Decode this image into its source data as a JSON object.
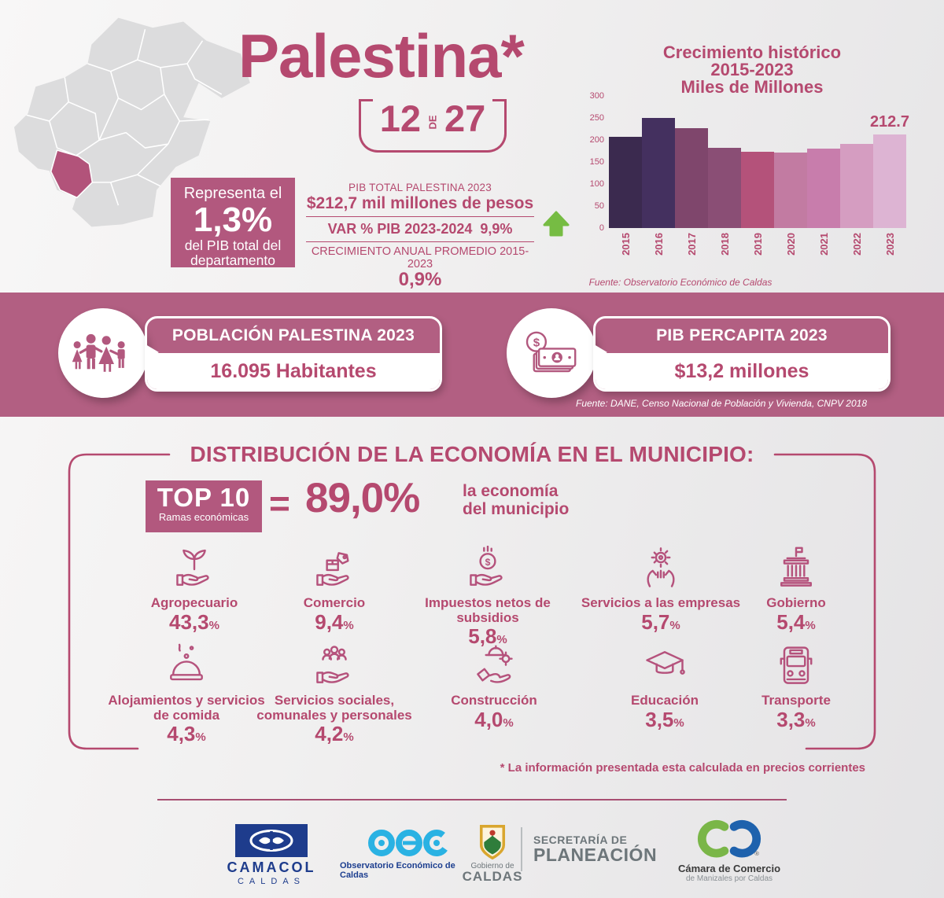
{
  "header": {
    "title": "Palestina*",
    "rank": {
      "value1": "12",
      "connector": "DE",
      "value2": "27"
    },
    "share_box": {
      "intro": "Representa el",
      "value": "1,3%",
      "caption": "del PIB total del departamento"
    },
    "pib": {
      "label1": "PIB TOTAL PALESTINA 2023",
      "value1": "$212,7 mil millones de pesos",
      "var_label": "VAR % PIB 2023-2024",
      "var_value": "9,9%",
      "growth_label": "CRECIMIENTO ANUAL PROMEDIO 2015-2023",
      "growth_value": "0,9%"
    },
    "source": "Fuente: Observatorio Económico de Caldas"
  },
  "chart_data": {
    "type": "bar",
    "title_lines": [
      "Crecimiento histórico",
      "2015-2023",
      "Miles de Millones"
    ],
    "categories": [
      "2015",
      "2016",
      "2017",
      "2018",
      "2019",
      "2020",
      "2021",
      "2022",
      "2023"
    ],
    "values": [
      207,
      250,
      226,
      183,
      174,
      172,
      180,
      191,
      212.7
    ],
    "bar_colors": [
      "#3b2a4f",
      "#44305f",
      "#7f466c",
      "#8a4e75",
      "#b4527a",
      "#c27ba2",
      "#c87dac",
      "#d59dc1",
      "#ddb4d3"
    ],
    "ylim": [
      0,
      300
    ],
    "yticks": [
      300,
      250,
      200,
      150,
      100,
      50,
      0
    ],
    "annotation": "212.7",
    "annotation_category": "2023",
    "grid": false,
    "legend": "none"
  },
  "banner": {
    "population": {
      "header": "POBLACIÓN PALESTINA 2023",
      "value": "16.095 Habitantes"
    },
    "percapita": {
      "header": "PIB PERCAPITA 2023",
      "value": "$13,2 millones"
    },
    "source": "Fuente: DANE, Censo Nacional de Población y Vivienda, CNPV 2018"
  },
  "distribution": {
    "title": "DISTRIBUCIÓN DE LA ECONOMÍA EN EL MUNICIPIO:",
    "top10": {
      "label": "TOP 10",
      "sub": "Ramas económicas",
      "equals": "=",
      "value": "89,0%",
      "caption1": "la economía",
      "caption2": "del municipio"
    },
    "unit": "%",
    "sectors": [
      {
        "name": "Agropecuario",
        "value": "43,3",
        "icon": "sprout-hand"
      },
      {
        "name": "Comercio",
        "value": "9,4",
        "icon": "box-hand"
      },
      {
        "name": "Impuestos netos de subsidios",
        "value": "5,8",
        "icon": "coin-hand"
      },
      {
        "name": "Servicios a las empresas",
        "value": "5,7",
        "icon": "gear-hands"
      },
      {
        "name": "Gobierno",
        "value": "5,4",
        "icon": "government"
      },
      {
        "name": "Alojamientos y servicios de comida",
        "value": "4,3",
        "icon": "cloche"
      },
      {
        "name": "Servicios sociales, comunales y personales",
        "value": "4,2",
        "icon": "people-hand"
      },
      {
        "name": "Construcción",
        "value": "4,0",
        "icon": "helmet-hand"
      },
      {
        "name": "Educación",
        "value": "3,5",
        "icon": "grad-cap"
      },
      {
        "name": "Transporte",
        "value": "3,3",
        "icon": "bus"
      }
    ],
    "note": "* La información presentada esta calculada en precios corrientes"
  },
  "footer": {
    "camacol": {
      "name": "CAMACOL",
      "sub": "CALDAS"
    },
    "oec": {
      "sub": "Observatorio Económico de Caldas"
    },
    "gobierno": {
      "line1": "Gobierno de",
      "line2": "CALDAS"
    },
    "secretaria": {
      "line1": "SECRETARÍA DE",
      "line2": "PLANEACIÓN"
    },
    "camara": {
      "line1": "Cámara de Comercio",
      "line2": "de Manizales por Caldas",
      "mark": "®"
    }
  }
}
